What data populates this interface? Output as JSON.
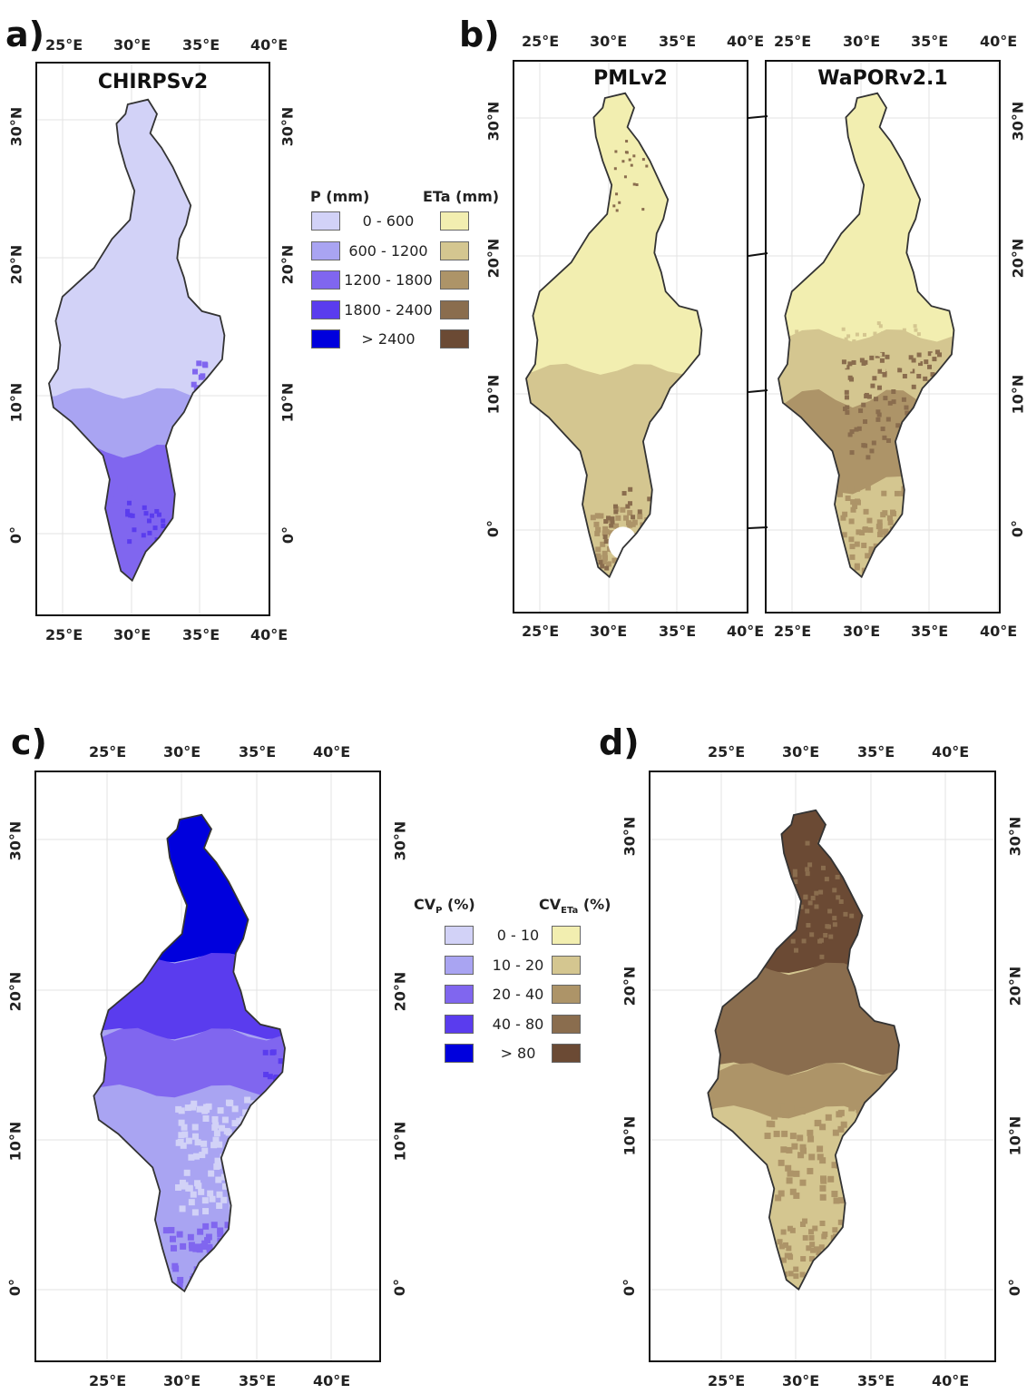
{
  "panels": {
    "a": {
      "letter": "a)",
      "title": "CHIRPSv2"
    },
    "b": {
      "letter": "b)",
      "title_left": "PMLv2",
      "title_right": "WaPORv2.1"
    },
    "c": {
      "letter": "c)"
    },
    "d": {
      "letter": "d)"
    }
  },
  "ticks": {
    "lon": [
      "25°E",
      "30°E",
      "35°E",
      "40°E"
    ],
    "lat": [
      "30°N",
      "20°N",
      "10°N",
      "0°"
    ]
  },
  "legend_top": {
    "p_head": "P (mm)",
    "eta_head": "ETa (mm)",
    "labels": [
      "0 - 600",
      "600 - 1200",
      "1200 - 1800",
      "1800 - 2400",
      "> 2400"
    ]
  },
  "legend_bottom": {
    "cvp_head_main": "CV",
    "cvp_head_sub": "P",
    "cvp_head_unit": " (%)",
    "cveta_head_main": "CV",
    "cveta_head_sub": "ETa",
    "cveta_head_unit": " (%)",
    "labels": [
      "0 - 10",
      "10 - 20",
      "20 - 40",
      "40 - 80",
      "> 80"
    ]
  },
  "colors": {
    "precip": [
      "#d2d2f7",
      "#a9a4f2",
      "#8066ef",
      "#5a3cee",
      "#0000dd"
    ],
    "eta": [
      "#f2eeb0",
      "#d4c690",
      "#ad9468",
      "#8a6d4e",
      "#6b4a34"
    ]
  }
}
